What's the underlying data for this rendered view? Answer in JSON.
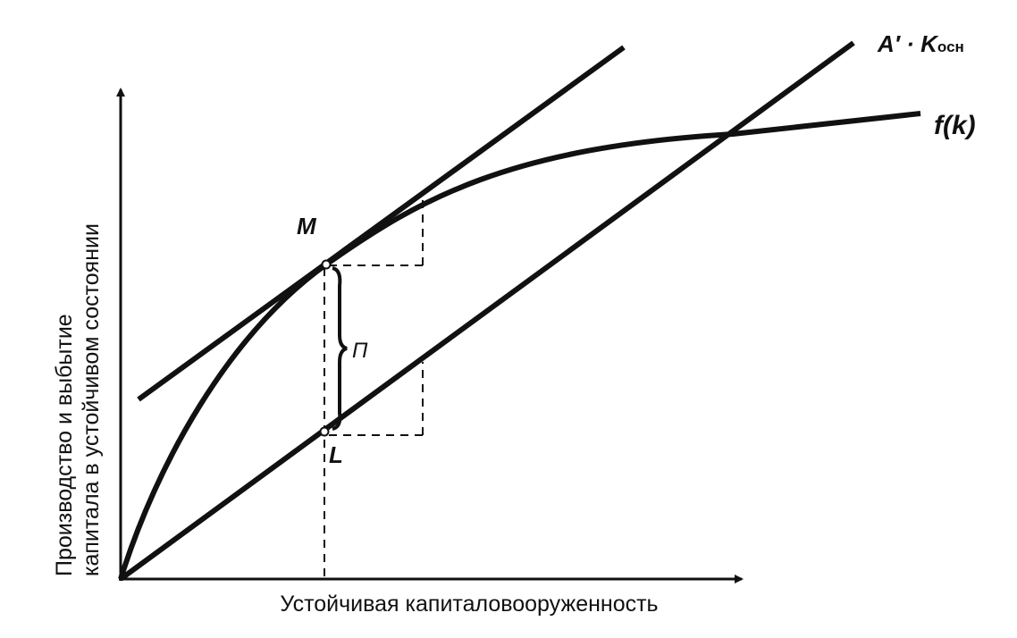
{
  "diagram": {
    "y_axis_label_line1": "Производство и выбытие",
    "y_axis_label_line2": "капитала в устойчивом состоянии",
    "x_axis_label": "Устойчивая капиталовооруженность",
    "line_label_main": "A′ · K",
    "line_label_sub": "осн",
    "curve_label": "f(k)",
    "point_m_label": "M",
    "point_l_label": "L",
    "gap_label": "П",
    "ink_color": "#111111"
  }
}
